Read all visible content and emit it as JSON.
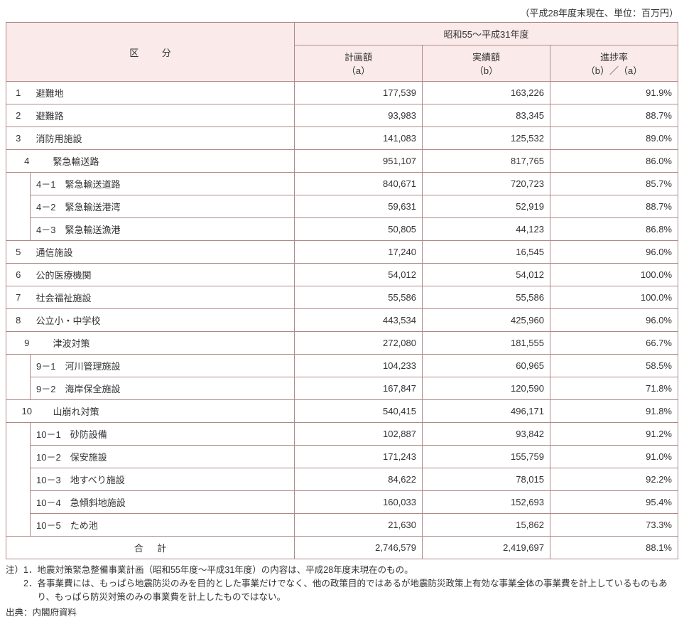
{
  "meta": {
    "unit_note": "（平成28年度末現在、単位：百万円）"
  },
  "header": {
    "category": "区分",
    "period": "昭和55～平成31年度",
    "col_a": "計画額",
    "col_a_sub": "（a）",
    "col_b": "実績額",
    "col_b_sub": "（b）",
    "col_c": "進捗率",
    "col_c_sub": "（b）／（a）"
  },
  "rows": [
    {
      "num": "1",
      "label": "避難地",
      "a": "177,539",
      "b": "163,226",
      "c": "91.9%"
    },
    {
      "num": "2",
      "label": "避難路",
      "a": "93,983",
      "b": "83,345",
      "c": "88.7%"
    },
    {
      "num": "3",
      "label": "消防用施設",
      "a": "141,083",
      "b": "125,532",
      "c": "89.0%"
    },
    {
      "num": "4",
      "label": "緊急輸送路",
      "a": "951,107",
      "b": "817,765",
      "c": "86.0%"
    },
    {
      "sub": true,
      "label": "4－1　緊急輸送道路",
      "a": "840,671",
      "b": "720,723",
      "c": "85.7%"
    },
    {
      "sub": true,
      "label": "4－2　緊急輸送港湾",
      "a": "59,631",
      "b": "52,919",
      "c": "88.7%"
    },
    {
      "sub": true,
      "label": "4－3　緊急輸送漁港",
      "a": "50,805",
      "b": "44,123",
      "c": "86.8%"
    },
    {
      "num": "5",
      "label": "通信施設",
      "a": "17,240",
      "b": "16,545",
      "c": "96.0%"
    },
    {
      "num": "6",
      "label": "公的医療機関",
      "a": "54,012",
      "b": "54,012",
      "c": "100.0%"
    },
    {
      "num": "7",
      "label": "社会福祉施設",
      "a": "55,586",
      "b": "55,586",
      "c": "100.0%"
    },
    {
      "num": "8",
      "label": "公立小・中学校",
      "a": "443,534",
      "b": "425,960",
      "c": "96.0%"
    },
    {
      "num": "9",
      "label": "津波対策",
      "a": "272,080",
      "b": "181,555",
      "c": "66.7%"
    },
    {
      "sub": true,
      "label": "9－1　河川管理施設",
      "a": "104,233",
      "b": "60,965",
      "c": "58.5%"
    },
    {
      "sub": true,
      "label": "9－2　海岸保全施設",
      "a": "167,847",
      "b": "120,590",
      "c": "71.8%"
    },
    {
      "num": "10",
      "label": "山崩れ対策",
      "a": "540,415",
      "b": "496,171",
      "c": "91.8%"
    },
    {
      "sub": true,
      "label": "10－1　砂防設備",
      "a": "102,887",
      "b": "93,842",
      "c": "91.2%"
    },
    {
      "sub": true,
      "label": "10－2　保安施設",
      "a": "171,243",
      "b": "155,759",
      "c": "91.0%"
    },
    {
      "sub": true,
      "label": "10－3　地すべり施設",
      "a": "84,622",
      "b": "78,015",
      "c": "92.2%"
    },
    {
      "sub": true,
      "label": "10－4　急傾斜地施設",
      "a": "160,033",
      "b": "152,693",
      "c": "95.4%"
    },
    {
      "sub": true,
      "label": "10－5　ため池",
      "a": "21,630",
      "b": "15,862",
      "c": "73.3%"
    }
  ],
  "total": {
    "label": "合計",
    "a": "2,746,579",
    "b": "2,419,697",
    "c": "88.1%"
  },
  "footnotes": {
    "prefix": "注）",
    "n1_num": "1．",
    "n1": "地震対策緊急整備事業計画（昭和55年度～平成31年度）の内容は、平成28年度末現在のもの。",
    "n2_num": "2．",
    "n2": "各事業費には、もっぱら地震防災のみを目的とした事業だけでなく、他の政策目的ではあるが地震防災政策上有効な事業全体の事業費を計上しているものもあり、もっぱら防災対策のみの事業費を計上したものではない。"
  },
  "source": "出典：内閣府資料",
  "styling": {
    "header_bg": "#fbeaea",
    "border_color": "#b08888",
    "base_fontsize": 13,
    "footnote_fontsize": 12.5
  }
}
